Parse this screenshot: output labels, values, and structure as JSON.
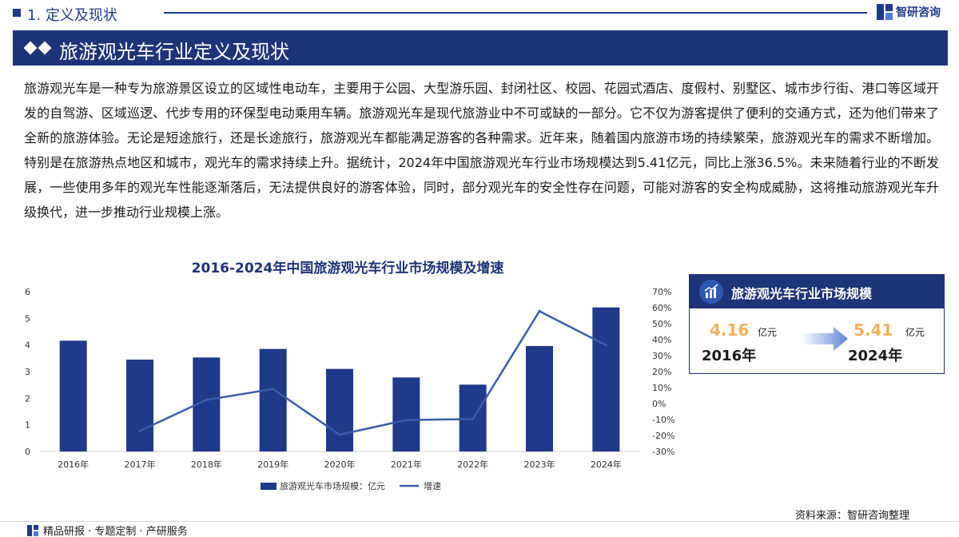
{
  "header": {
    "section_title": "1. 定义及现状",
    "brand": "智研咨询"
  },
  "title_bar": {
    "title": "旅游观光车行业定义及现状"
  },
  "body": {
    "paragraph": "旅游观光车是一种专为旅游景区设立的区域性电动车，主要用于公园、大型游乐园、封闭社区、校园、花园式酒店、度假村、别墅区、城市步行街、港口等区域开发的自驾游、区域巡逻、代步专用的环保型电动乘用车辆。旅游观光车是现代旅游业中不可或缺的一部分。它不仅为游客提供了便利的交通方式，还为他们带来了全新的旅游体验。无论是短途旅行，还是长途旅行，旅游观光车都能满足游客的各种需求。近年来，随着国内旅游市场的持续繁荣，旅游观光车的需求不断增加。特别是在旅游热点地区和城市，观光车的需求持续上升。据统计，2024年中国旅游观光车行业市场规模达到5.41亿元，同比上涨36.5%。未来随着行业的不断发展，一些使用多年的观光车性能逐渐落后，无法提供良好的游客体验，同时，部分观光车的安全性存在问题，可能对游客的安全构成威胁，这将推动旅游观光车升级换代，进一步推动行业规模上涨。"
  },
  "chart_data": {
    "type": "bar",
    "title": "2016-2024年中国旅游观光车行业市场规模及增速",
    "categories": [
      "2016年",
      "2017年",
      "2018年",
      "2019年",
      "2020年",
      "2021年",
      "2022年",
      "2023年",
      "2024年"
    ],
    "series": [
      {
        "name": "旅游观光车市场规模：亿元",
        "type": "bar",
        "axis": "left",
        "color": "#1e3a8a",
        "values": [
          4.16,
          3.45,
          3.53,
          3.85,
          3.1,
          2.78,
          2.51,
          3.96,
          5.41
        ]
      },
      {
        "name": "增速",
        "type": "line",
        "axis": "right",
        "color": "#3b5ea8",
        "values": [
          null,
          -17.1,
          2.3,
          9.1,
          -19.5,
          -10.3,
          -9.7,
          57.8,
          36.5
        ]
      }
    ],
    "ylim_left": [
      0,
      6
    ],
    "yticks_left": [
      "0",
      "1",
      "2",
      "3",
      "4",
      "5",
      "6"
    ],
    "ylim_right": [
      -30,
      70
    ],
    "yticks_right": [
      "-30%",
      "-20%",
      "-10%",
      "0%",
      "10%",
      "20%",
      "30%",
      "40%",
      "50%",
      "60%",
      "70%"
    ],
    "grid": false,
    "legend": "bottom"
  },
  "info_box": {
    "title": "旅游观光车行业市场规模",
    "start_value": "4.16",
    "start_unit": "亿元",
    "start_year": "2016年",
    "end_value": "5.41",
    "end_unit": "亿元",
    "end_year": "2024年",
    "icon": "bar-chart-icon"
  },
  "footer": {
    "source": "资料来源：智研咨询整理",
    "services": "精品研报 · 专题定制 · 产研服务"
  }
}
